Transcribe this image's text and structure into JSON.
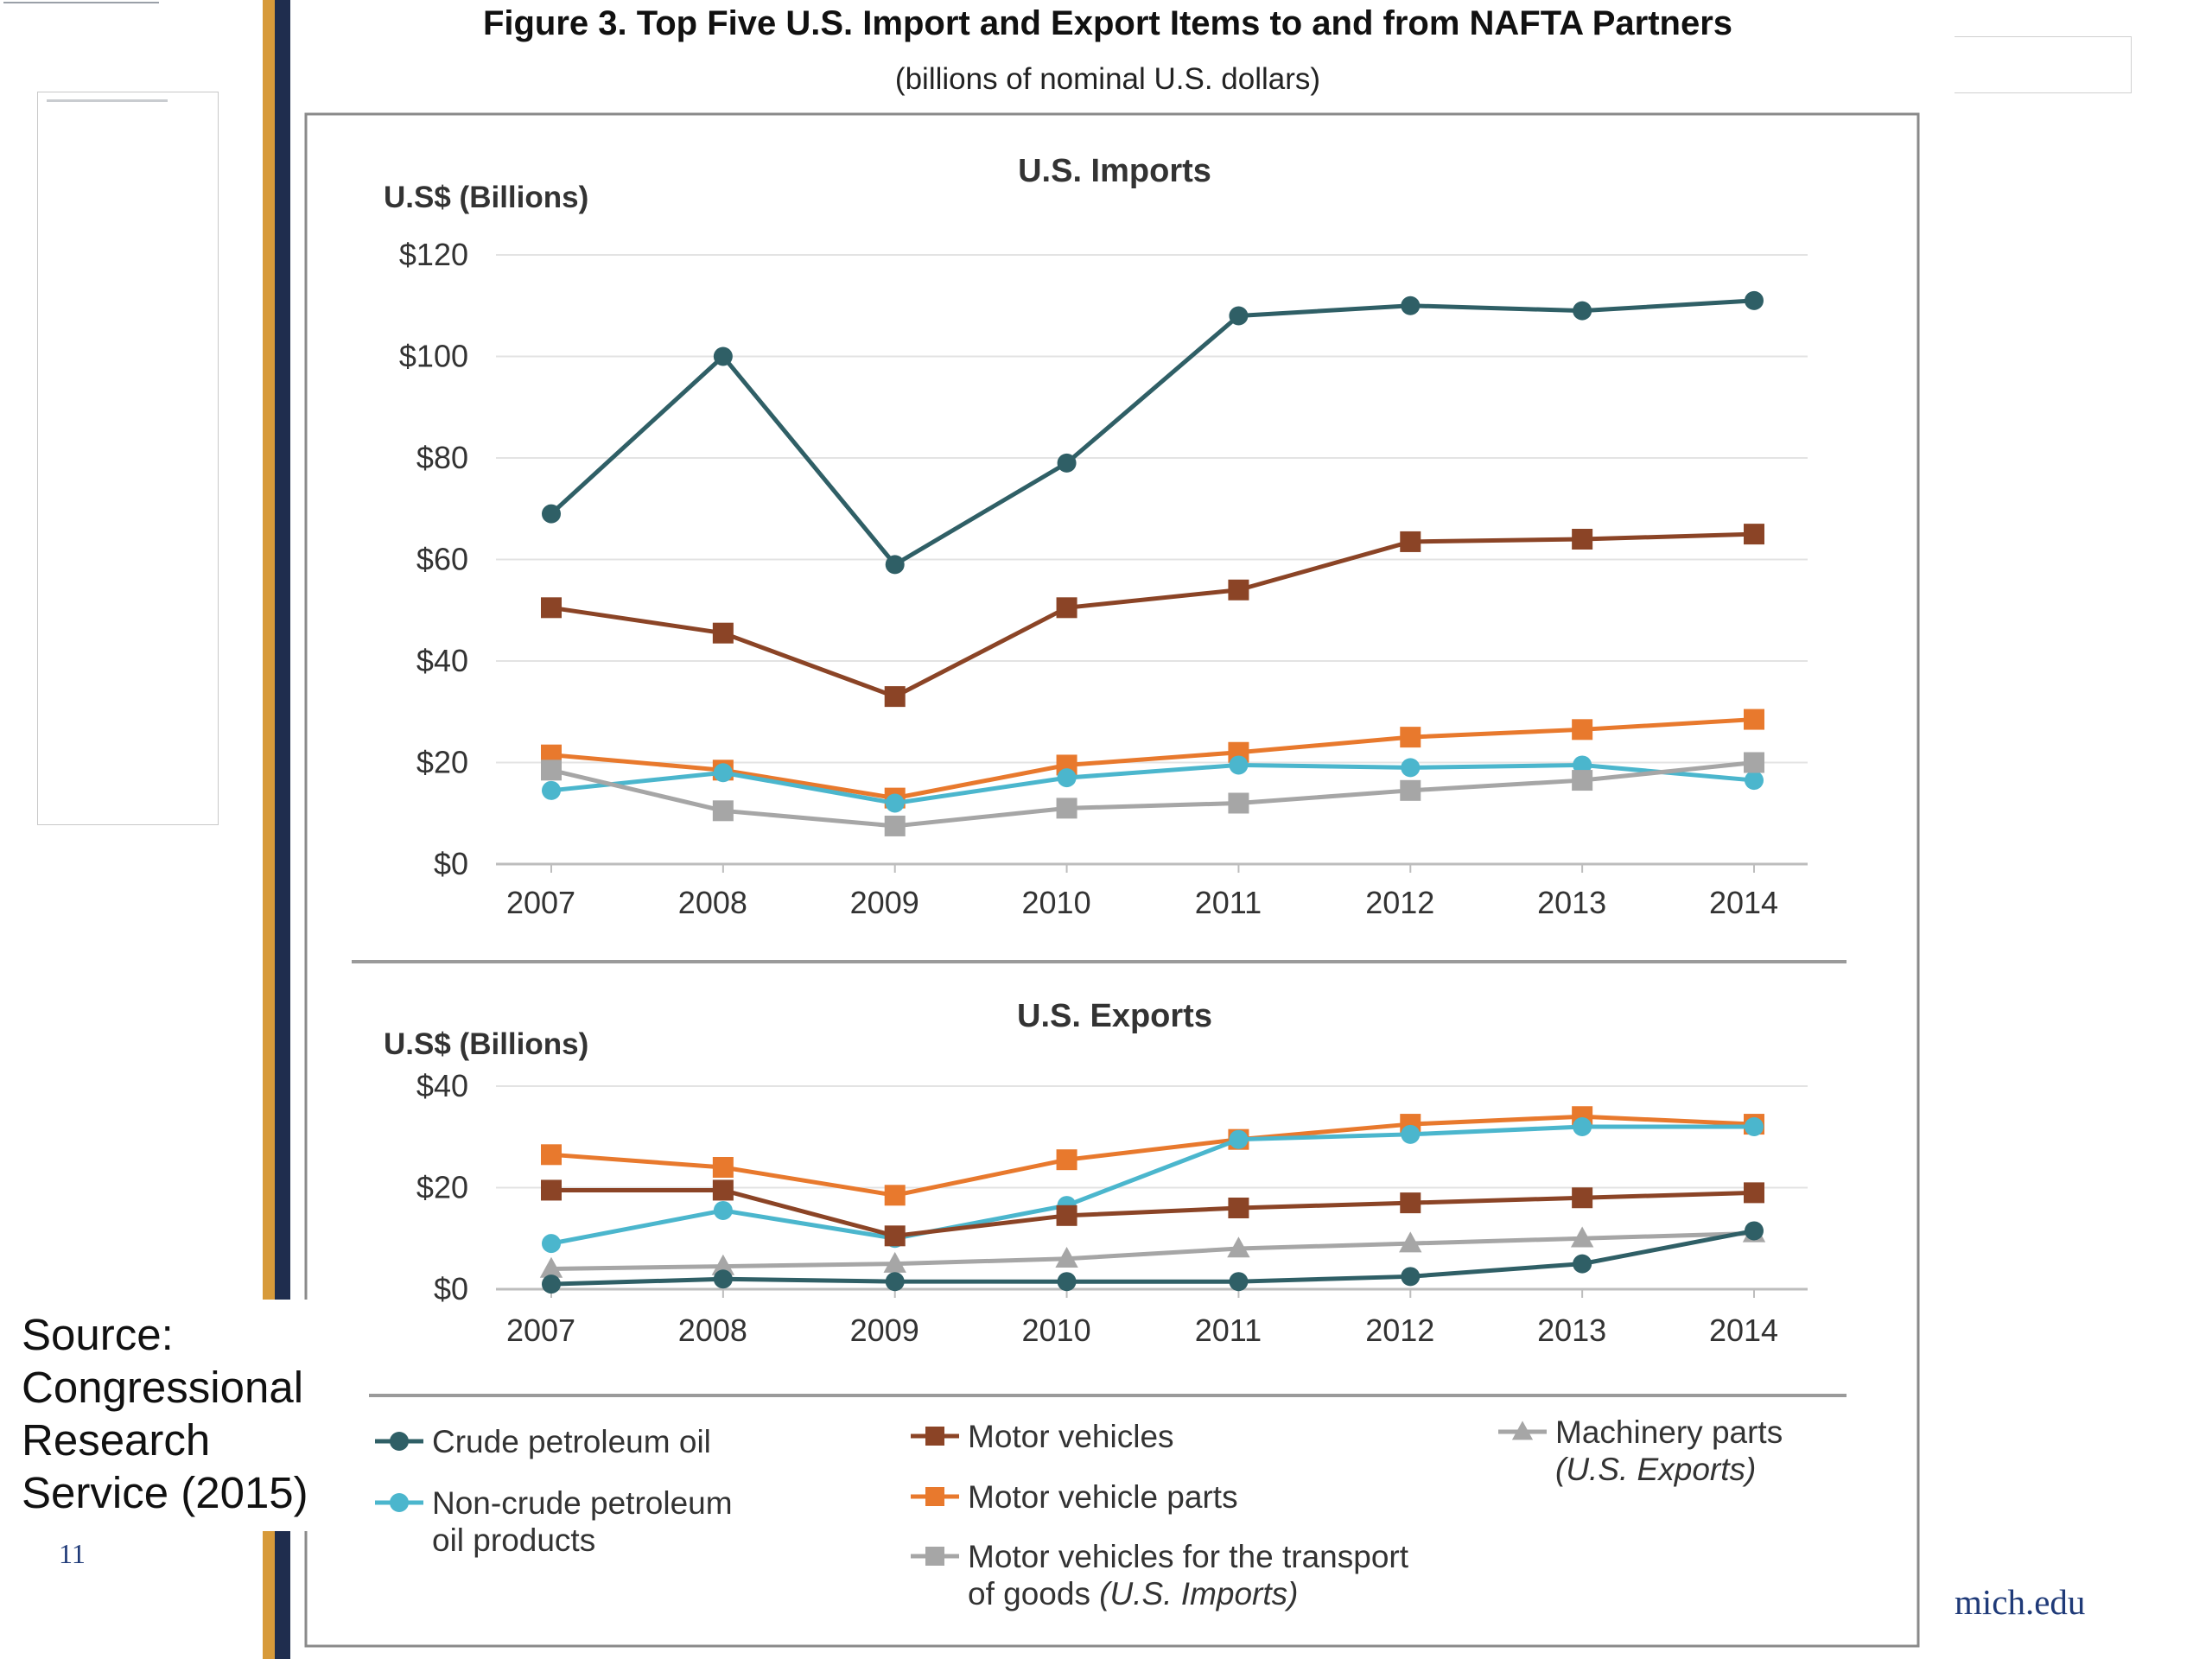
{
  "slide": {
    "source_text": "Source: Congressional Research Service (2015)",
    "page_number": "11",
    "domain_text": "mich.edu"
  },
  "colors": {
    "crude": "#2f5f66",
    "motor_vehicles": "#8b4426",
    "parts": "#e8792d",
    "noncrude": "#4bb6cd",
    "gray": "#a6a6a6",
    "gold_stripe": "#d79a3a",
    "navy_stripe": "#1f2d4e"
  },
  "figure": {
    "title": "Figure 3. Top Five U.S. Import and Export Items to and from NAFTA Partners",
    "subtitle": "(billions of nominal U.S. dollars)"
  },
  "legend": [
    {
      "key": "crude",
      "label_lines": [
        "Crude petroleum oil"
      ],
      "marker": "circle",
      "color": "#2f5f66"
    },
    {
      "key": "noncrude",
      "label_lines": [
        "Non-crude petroleum",
        "oil products"
      ],
      "marker": "circle",
      "color": "#4bb6cd"
    },
    {
      "key": "motor_vehicles",
      "label_lines": [
        "Motor vehicles"
      ],
      "marker": "square",
      "color": "#8b4426"
    },
    {
      "key": "parts",
      "label_lines": [
        "Motor vehicle parts"
      ],
      "marker": "square",
      "color": "#e8792d"
    },
    {
      "key": "transport",
      "label_lines": [
        "Motor vehicles for the transport",
        "of goods"
      ],
      "italic_suffix": "(U.S. Imports)",
      "marker": "square",
      "color": "#a6a6a6"
    },
    {
      "key": "machinery",
      "label_lines": [
        "Machinery parts"
      ],
      "italic_line": "(U.S. Exports)",
      "marker": "triangle",
      "color": "#a6a6a6"
    }
  ],
  "chart_data": [
    {
      "type": "line",
      "title": "U.S. Imports",
      "ylabel": "U.S$ (Billions)",
      "x": [
        "2007",
        "2008",
        "2009",
        "2010",
        "2011",
        "2012",
        "2013",
        "2014"
      ],
      "ylim": [
        0,
        120
      ],
      "yticks": [
        0,
        20,
        40,
        60,
        80,
        100,
        120
      ],
      "ytick_labels": [
        "$0",
        "$20",
        "$40",
        "$60",
        "$80",
        "$100",
        "$120"
      ],
      "grid": true,
      "series": [
        {
          "name": "Crude petroleum oil",
          "key": "crude",
          "marker": "circle",
          "values": [
            69,
            100,
            59,
            79,
            108,
            110,
            109,
            111
          ]
        },
        {
          "name": "Motor vehicles",
          "key": "motor_vehicles",
          "marker": "square",
          "values": [
            50.5,
            45.5,
            33,
            50.5,
            54,
            63.5,
            64,
            65
          ]
        },
        {
          "name": "Motor vehicle parts",
          "key": "parts",
          "marker": "square",
          "values": [
            21.5,
            18.5,
            13,
            19.5,
            22,
            25,
            26.5,
            28.5
          ]
        },
        {
          "name": "Non-crude petroleum oil products",
          "key": "noncrude",
          "marker": "circle",
          "values": [
            14.5,
            18,
            12,
            17,
            19.5,
            19,
            19.5,
            16.5
          ]
        },
        {
          "name": "Motor vehicles for the transport of goods",
          "key": "gray",
          "marker": "square",
          "values": [
            18.5,
            10.5,
            7.5,
            11,
            12,
            14.5,
            16.5,
            20
          ]
        }
      ]
    },
    {
      "type": "line",
      "title": "U.S. Exports",
      "ylabel": "U.S$ (Billions)",
      "x": [
        "2007",
        "2008",
        "2009",
        "2010",
        "2011",
        "2012",
        "2013",
        "2014"
      ],
      "ylim": [
        0,
        40
      ],
      "yticks": [
        0,
        20,
        40
      ],
      "ytick_labels": [
        "$0",
        "$20",
        "$40"
      ],
      "grid": true,
      "series": [
        {
          "name": "Motor vehicle parts",
          "key": "parts",
          "marker": "square",
          "values": [
            26.5,
            24,
            18.5,
            25.5,
            29.5,
            32.5,
            34,
            32.5
          ]
        },
        {
          "name": "Non-crude petroleum oil products",
          "key": "noncrude",
          "marker": "circle",
          "values": [
            9,
            15.5,
            10,
            16.5,
            29.5,
            30.5,
            32,
            32
          ]
        },
        {
          "name": "Motor vehicles",
          "key": "motor_vehicles",
          "marker": "square",
          "values": [
            19.5,
            19.5,
            10.5,
            14.5,
            16,
            17,
            18,
            19
          ]
        },
        {
          "name": "Machinery parts",
          "key": "gray",
          "marker": "triangle",
          "values": [
            4,
            4.5,
            5,
            6,
            8,
            9,
            10,
            11
          ]
        },
        {
          "name": "Crude petroleum oil",
          "key": "crude",
          "marker": "circle",
          "values": [
            1,
            2,
            1.5,
            1.5,
            1.5,
            2.5,
            5,
            11.5
          ]
        }
      ]
    }
  ]
}
